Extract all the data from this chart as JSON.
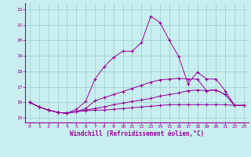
{
  "xlabel": "Windchill (Refroidissement éolien,°C)",
  "bg_color": "#c8eef0",
  "line_color": "#990099",
  "grid_color": "#99cccc",
  "x_ticks": [
    0,
    1,
    2,
    3,
    4,
    5,
    6,
    7,
    8,
    9,
    10,
    11,
    12,
    13,
    14,
    15,
    16,
    17,
    18,
    19,
    20,
    21,
    22,
    23
  ],
  "y_ticks": [
    15,
    16,
    17,
    18,
    19,
    20,
    21,
    22
  ],
  "xlim": [
    -0.5,
    23.5
  ],
  "ylim": [
    14.7,
    22.4
  ],
  "line1_y": [
    16.0,
    15.7,
    15.5,
    15.35,
    15.3,
    15.55,
    16.05,
    17.5,
    18.3,
    18.9,
    19.3,
    19.3,
    19.85,
    21.55,
    21.15,
    20.0,
    18.95,
    17.2,
    17.95,
    17.5,
    17.5,
    16.75,
    15.8,
    15.8
  ],
  "line2_y": [
    16.0,
    15.7,
    15.5,
    15.35,
    15.3,
    15.4,
    15.6,
    16.1,
    16.3,
    16.5,
    16.7,
    16.9,
    17.1,
    17.3,
    17.45,
    17.5,
    17.55,
    17.5,
    17.5,
    16.75,
    16.8,
    16.5,
    15.8,
    15.8
  ],
  "line3_y": [
    16.0,
    15.7,
    15.5,
    15.35,
    15.3,
    15.4,
    15.5,
    15.6,
    15.7,
    15.85,
    15.95,
    16.05,
    16.15,
    16.25,
    16.4,
    16.5,
    16.6,
    16.75,
    16.8,
    16.75,
    16.8,
    16.5,
    15.8,
    15.8
  ],
  "line4_y": [
    16.0,
    15.7,
    15.5,
    15.35,
    15.3,
    15.4,
    15.45,
    15.5,
    15.5,
    15.55,
    15.6,
    15.65,
    15.7,
    15.75,
    15.8,
    15.85,
    15.85,
    15.85,
    15.85,
    15.85,
    15.85,
    15.85,
    15.8,
    15.8
  ]
}
